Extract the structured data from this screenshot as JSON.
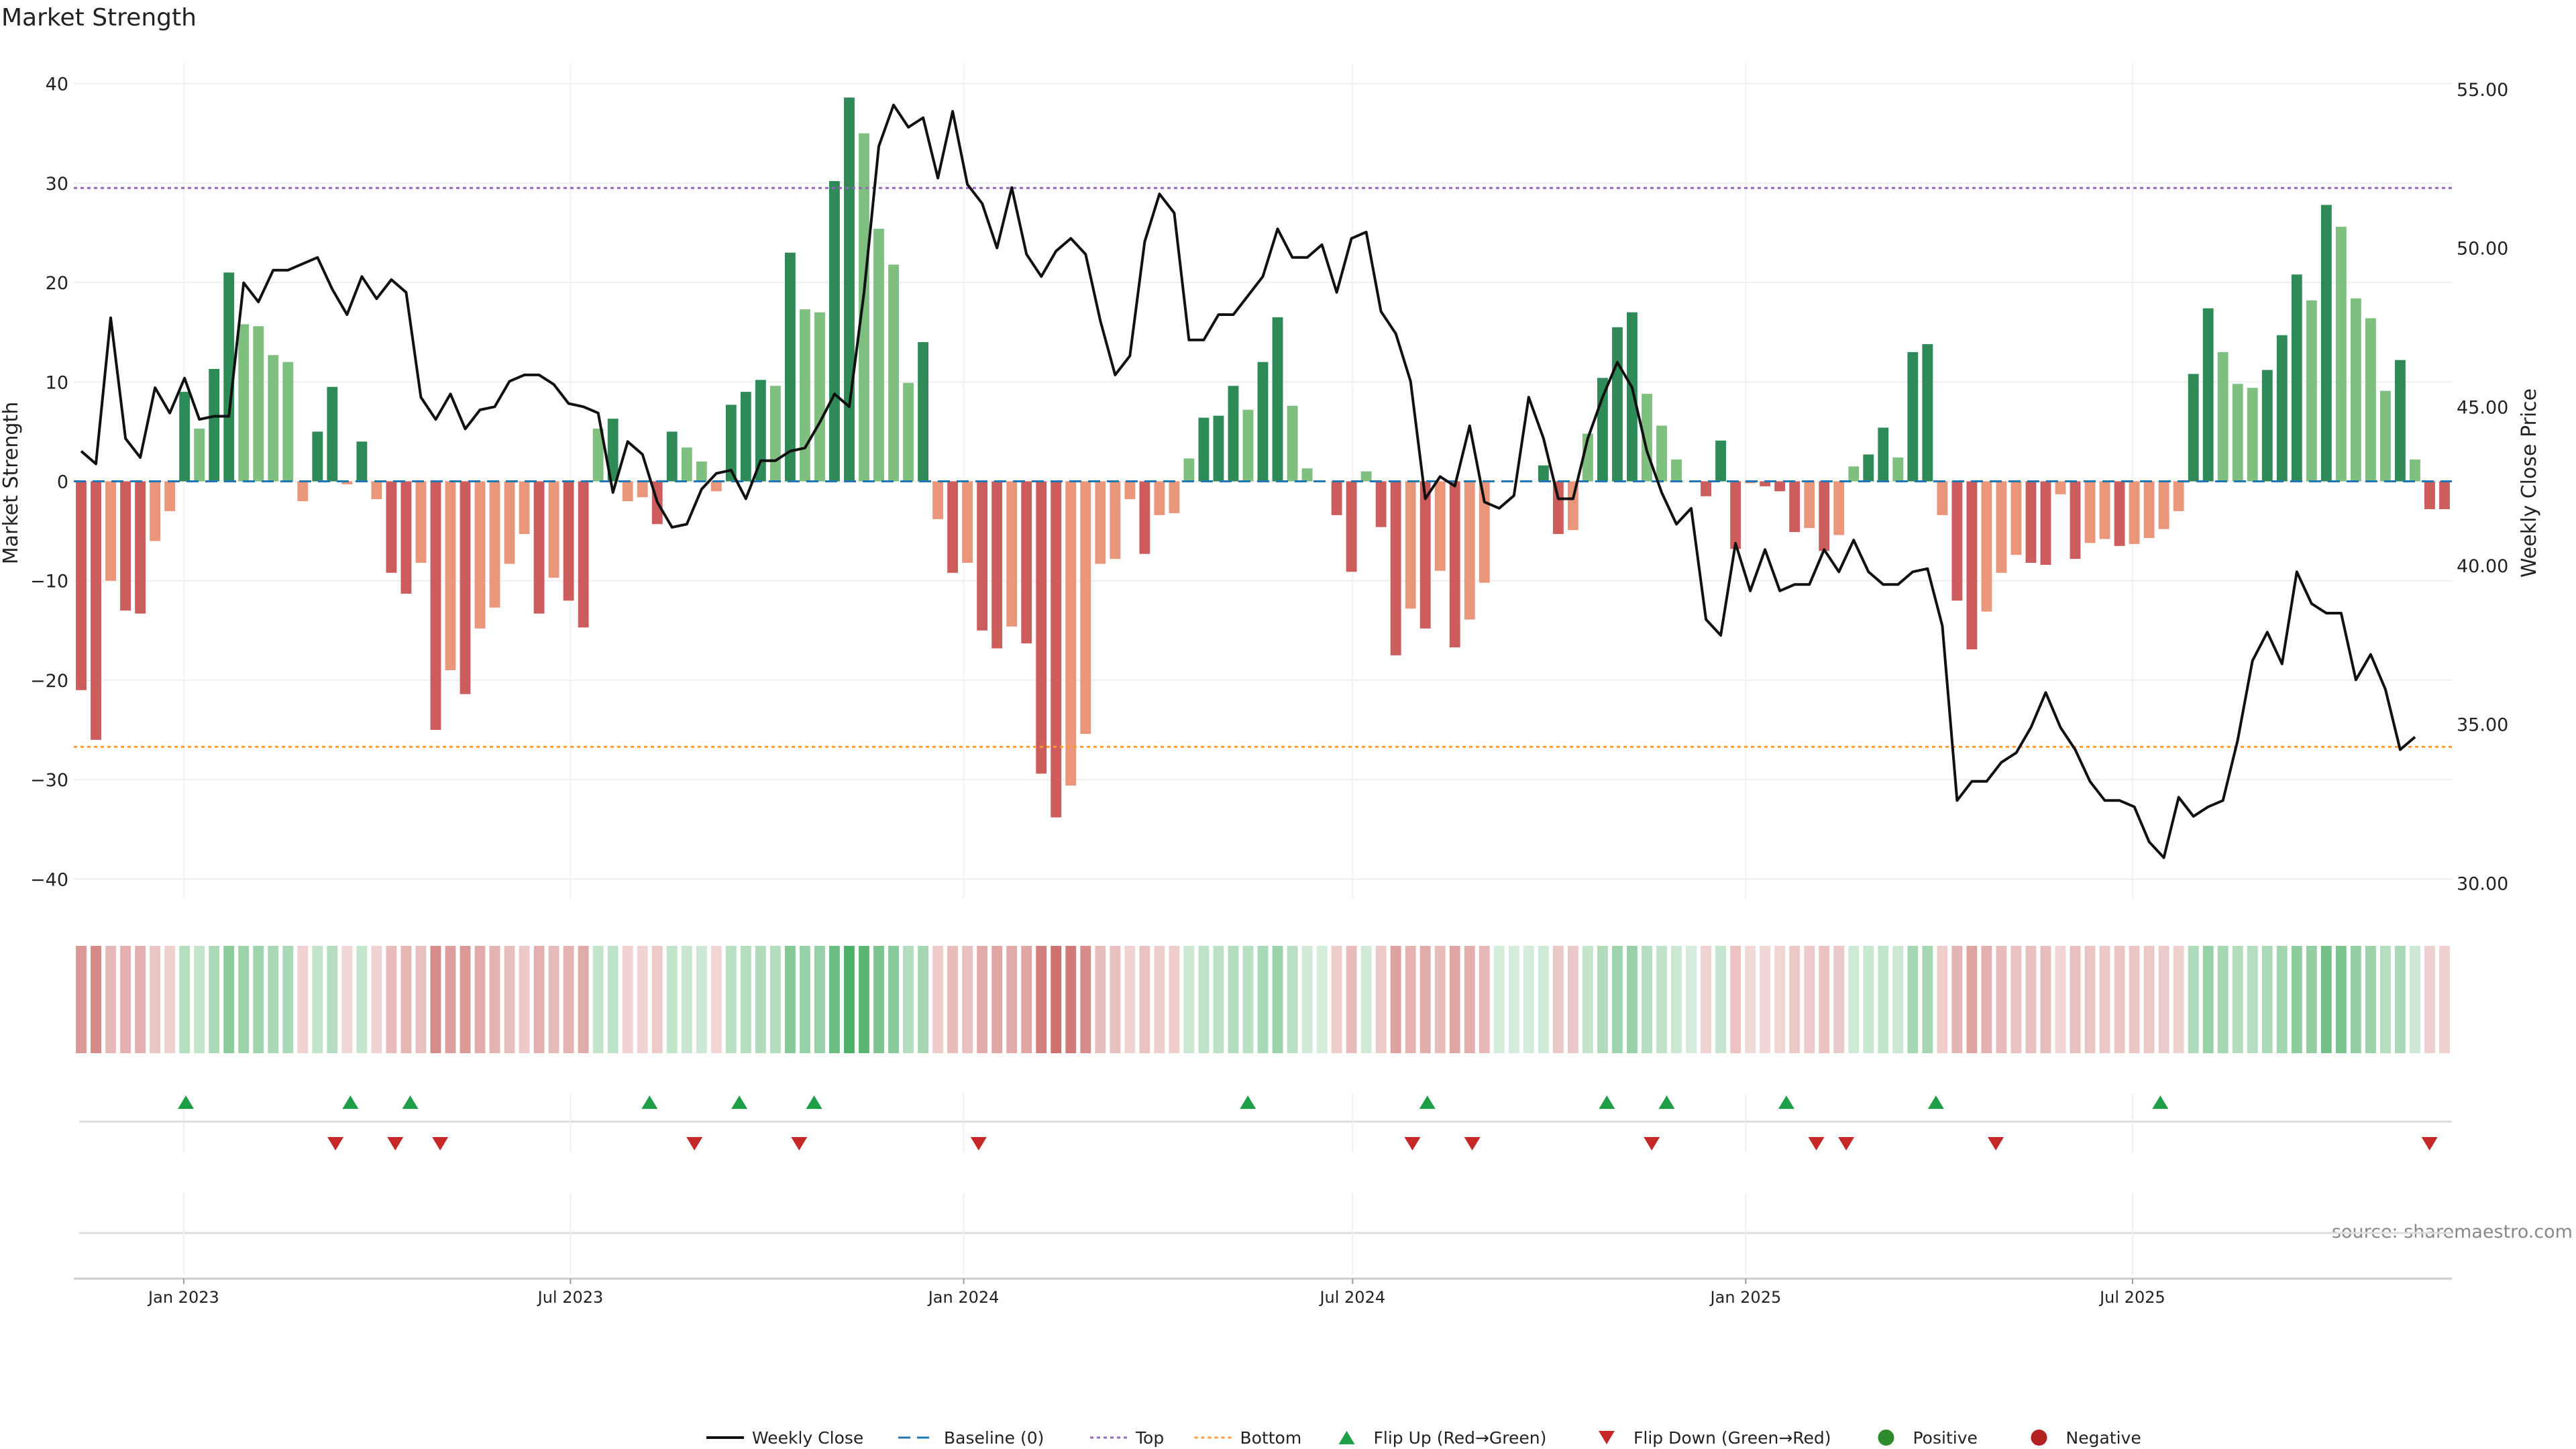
{
  "chart_data": {
    "type": "bar",
    "title": "Market Strength",
    "ylabel_left": "Market Strength",
    "ylabel_right": "Weekly Close Price",
    "source": "source: sharemaestro.com",
    "ylim_left": [
      -42,
      42
    ],
    "ylim_right": [
      29.5,
      55.8
    ],
    "yticks_left": [
      -40,
      -30,
      -20,
      -10,
      0,
      10,
      20,
      30,
      40
    ],
    "yticks_right": [
      "30.00",
      "35.00",
      "40.00",
      "45.00",
      "50.00",
      "55.00"
    ],
    "ytick_right_values": [
      30,
      35,
      40,
      45,
      50,
      55
    ],
    "top_level": 29.5,
    "bottom_level": -26.7,
    "x_start": "2022-11-14",
    "x_end": "2025-11-24",
    "x_tick_labels": [
      "Jan 2023",
      "Jul 2023",
      "Jan 2024",
      "Jul 2024",
      "Jan 2025",
      "Jul 2025"
    ],
    "x_tick_dates": [
      "2023-01-01",
      "2023-07-01",
      "2024-01-01",
      "2024-07-01",
      "2025-01-01",
      "2025-07-01"
    ],
    "colors": {
      "pos_strong": "#2e8b57",
      "pos_light": "#7fbf7f",
      "neg_strong": "#cd5c5c",
      "neg_light": "#e9967a",
      "close": "#111111",
      "baseline": "#1f77b4",
      "top": "#9467bd",
      "bottom": "#ff9933",
      "flip_up": "#1f9e48",
      "flip_down": "#c62828",
      "positive": "#2e8b2e",
      "negative": "#b22222"
    },
    "strength": [
      -21,
      -26,
      -10,
      -13,
      -13.3,
      -6,
      -3,
      9,
      5.3,
      11.3,
      21,
      15.8,
      15.6,
      12.7,
      12,
      -2,
      5,
      9.5,
      -0.3,
      4,
      -1.8,
      -9.2,
      -11.3,
      -8.2,
      -25,
      -19,
      -21.4,
      -14.8,
      -12.7,
      -8.3,
      -5.3,
      -13.3,
      -9.7,
      -12,
      -14.7,
      5.3,
      6.3,
      -2,
      -1.6,
      -4.3,
      5,
      3.4,
      2,
      -1,
      7.7,
      9,
      10.2,
      9.6,
      23,
      17.3,
      17,
      30.2,
      38.6,
      35,
      25.4,
      21.8,
      9.9,
      14,
      -3.8,
      -9.2,
      -8.2,
      -15,
      -16.8,
      -14.6,
      -16.3,
      -29.4,
      -33.8,
      -30.6,
      -25.4,
      -8.3,
      -7.8,
      -1.8,
      -7.3,
      -3.4,
      -3.2,
      2.3,
      6.4,
      6.6,
      9.6,
      7.2,
      12,
      16.5,
      7.6,
      1.3,
      0,
      -3.4,
      -9.1,
      1,
      -4.6,
      -17.5,
      -12.8,
      -14.8,
      -9,
      -16.7,
      -13.9,
      -10.2,
      0,
      0,
      0,
      1.6,
      -5.3,
      -4.9,
      4.8,
      10.4,
      15.5,
      17,
      8.8,
      5.6,
      2.2,
      0,
      -1.5,
      4.1,
      -6.8,
      -0.2,
      -0.5,
      -1,
      -5.1,
      -4.7,
      -7,
      -5.4,
      1.5,
      2.7,
      5.4,
      2.4,
      13,
      13.8,
      -3.4,
      -12,
      -16.9,
      -13.1,
      -9.2,
      -7.4,
      -8.2,
      -8.4,
      -1.3,
      -7.8,
      -6.2,
      -5.8,
      -6.5,
      -6.3,
      -5.7,
      -4.8,
      -3,
      10.8,
      17.4,
      13,
      9.8,
      9.4,
      11.2,
      14.7,
      20.8,
      18.2,
      27.8,
      25.6,
      18.4,
      16.4,
      9.1,
      12.2,
      2.2,
      -2.8,
      -2.8
    ],
    "close": [
      43.6,
      43.2,
      47.8,
      44.0,
      43.4,
      45.6,
      44.8,
      45.9,
      44.6,
      44.7,
      44.7,
      48.9,
      48.3,
      49.3,
      49.3,
      49.5,
      49.7,
      48.7,
      47.9,
      49.1,
      48.4,
      49.0,
      48.6,
      45.3,
      44.6,
      45.4,
      44.3,
      44.9,
      45.0,
      45.8,
      46.0,
      46.0,
      45.7,
      45.1,
      45.0,
      44.8,
      42.3,
      43.9,
      43.5,
      42.0,
      41.2,
      41.3,
      42.4,
      42.9,
      43.0,
      42.1,
      43.3,
      43.3,
      43.6,
      43.7,
      44.5,
      45.4,
      45.0,
      48.6,
      53.2,
      54.5,
      53.8,
      54.1,
      52.2,
      54.3,
      52.0,
      51.4,
      50.0,
      51.9,
      49.8,
      49.1,
      49.9,
      50.3,
      49.8,
      47.7,
      46.0,
      46.6,
      50.2,
      51.7,
      51.1,
      47.1,
      47.1,
      47.9,
      47.9,
      48.5,
      49.1,
      50.6,
      49.7,
      49.7,
      50.1,
      48.6,
      50.3,
      50.5,
      48.0,
      47.3,
      45.8,
      42.1,
      42.8,
      42.5,
      44.4,
      42.0,
      41.8,
      42.2,
      45.3,
      44.0,
      42.1,
      42.1,
      44.0,
      45.3,
      46.4,
      45.6,
      43.6,
      42.3,
      41.3,
      41.8,
      38.3,
      37.8,
      40.7,
      39.2,
      40.5,
      39.2,
      39.4,
      39.4,
      40.5,
      39.8,
      40.8,
      39.8,
      39.4,
      39.4,
      39.8,
      39.9,
      38.1,
      32.6,
      33.2,
      33.2,
      33.8,
      34.1,
      34.9,
      36.0,
      34.9,
      34.2,
      33.2,
      32.6,
      32.6,
      32.4,
      31.3,
      30.8,
      32.7,
      32.1,
      32.4,
      32.6,
      34.5,
      37.0,
      37.9,
      36.9,
      39.8,
      38.8,
      38.5,
      38.5,
      36.4,
      37.2,
      36.1,
      34.2,
      34.6
    ],
    "flip_up": [
      "2023-01-02",
      "2023-03-20",
      "2023-04-17",
      "2023-08-07",
      "2023-09-18",
      "2023-10-23",
      "2024-05-13",
      "2024-08-05",
      "2024-10-28",
      "2024-11-25",
      "2025-01-20",
      "2025-03-31",
      "2025-07-14"
    ],
    "flip_down": [
      "2023-03-13",
      "2023-04-10",
      "2023-05-01",
      "2023-08-28",
      "2023-10-16",
      "2024-01-08",
      "2024-07-29",
      "2024-08-26",
      "2024-11-18",
      "2025-02-03",
      "2025-02-17",
      "2025-04-28",
      "2025-11-17"
    ],
    "legend": [
      {
        "label": "Weekly Close",
        "kind": "line"
      },
      {
        "label": "Baseline (0)",
        "kind": "dash"
      },
      {
        "label": "Top",
        "kind": "dot"
      },
      {
        "label": "Bottom",
        "kind": "dot-orange"
      },
      {
        "label": "Flip Up (Red→Green)",
        "kind": "tri-up"
      },
      {
        "label": "Flip Down (Green→Red)",
        "kind": "tri-down"
      },
      {
        "label": "Positive",
        "kind": "dot-green"
      },
      {
        "label": "Negative",
        "kind": "dot-red"
      }
    ],
    "legend_position": "bottom-center"
  }
}
